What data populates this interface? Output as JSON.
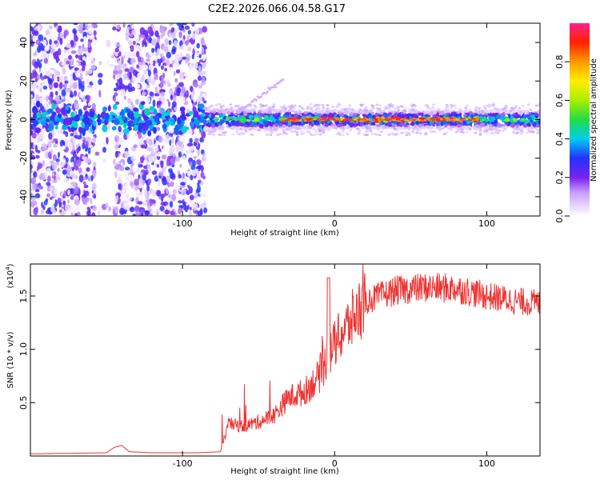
{
  "title": "C2E2.2026.066.04.58.G17",
  "chart_data": [
    {
      "type": "heatmap",
      "xlabel": "Height of straight line (km)",
      "ylabel": "Frequency (Hz)",
      "xlim": [
        -200,
        135
      ],
      "ylim": [
        -50,
        50
      ],
      "xticks": [
        -100,
        0,
        100
      ],
      "yticks": [
        -40,
        -20,
        0,
        20,
        40
      ],
      "regions": [
        {
          "x_range": [
            -200,
            -85
          ],
          "description": "broad scatter, low amplitude",
          "amplitude": 0.2
        },
        {
          "x_range": [
            -85,
            135
          ],
          "description": "narrow band near 0 Hz",
          "amplitude": 0.45
        },
        {
          "x_range": [
            -35,
            95
          ],
          "description": "peak amplitude band near 0 Hz",
          "amplitude": 0.95
        }
      ],
      "colorbar": {
        "label": "Normalized spectral amplitude",
        "range": [
          0,
          1
        ],
        "ticks": [
          0.0,
          0.2,
          0.4,
          0.6,
          0.8
        ]
      }
    },
    {
      "type": "line",
      "xlabel": "Height of straight line (km)",
      "ylabel": "SNR (10 * v/v)",
      "exponent_label": "(x10",
      "exponent_power": "4",
      "xlim": [
        -200,
        135
      ],
      "ylim": [
        0,
        1.8
      ],
      "xticks": [
        -100,
        0,
        100
      ],
      "yticks": [
        0.5,
        1.0,
        1.5
      ],
      "color": "#ee3333",
      "series": [
        {
          "name": "SNR",
          "x": [
            -200,
            -150,
            -145,
            -140,
            -135,
            -120,
            -90,
            -75,
            -70,
            -60,
            -50,
            -40,
            -30,
            -20,
            -10,
            -5,
            0,
            10,
            20,
            30,
            40,
            60,
            80,
            100,
            120,
            135
          ],
          "values": [
            0.02,
            0.03,
            0.08,
            0.1,
            0.04,
            0.03,
            0.03,
            0.04,
            0.3,
            0.28,
            0.32,
            0.38,
            0.55,
            0.6,
            0.75,
            0.9,
            1.05,
            1.25,
            1.45,
            1.5,
            1.55,
            1.58,
            1.57,
            1.5,
            1.45,
            1.43
          ]
        }
      ]
    }
  ]
}
